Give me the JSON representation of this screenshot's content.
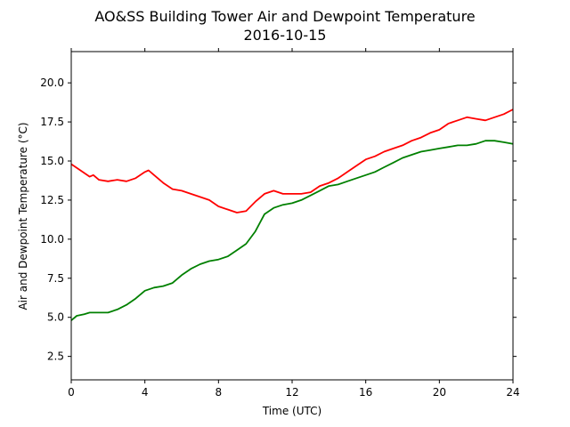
{
  "chart_data": {
    "type": "line",
    "title": "AO&SS Building Tower Air and Dewpoint Temperature",
    "subtitle": "2016-10-15",
    "xlabel": "Time (UTC)",
    "ylabel": "Air and Dewpoint Temperature (°C)",
    "xlim": [
      0,
      24
    ],
    "ylim": [
      1.0,
      22.0
    ],
    "x_ticks": [
      0,
      4,
      8,
      12,
      16,
      20,
      24
    ],
    "y_ticks": [
      2.5,
      5.0,
      7.5,
      10.0,
      12.5,
      15.0,
      17.5,
      20.0
    ],
    "grid": false,
    "series": [
      {
        "color": "#ff0000",
        "x": [
          0,
          0.5,
          1.0,
          1.2,
          1.5,
          2.0,
          2.5,
          3.0,
          3.5,
          4.0,
          4.2,
          4.5,
          5.0,
          5.5,
          6.0,
          6.5,
          7.0,
          7.5,
          8.0,
          8.5,
          9.0,
          9.5,
          10.0,
          10.5,
          11.0,
          11.5,
          12.0,
          12.5,
          13.0,
          13.5,
          14.0,
          14.5,
          15.0,
          15.5,
          16.0,
          16.5,
          17.0,
          17.5,
          18.0,
          18.5,
          19.0,
          19.5,
          20.0,
          20.5,
          21.0,
          21.5,
          22.0,
          22.5,
          23.0,
          23.5,
          24.0
        ],
        "values": [
          14.8,
          14.4,
          14.0,
          14.1,
          13.8,
          13.7,
          13.8,
          13.7,
          13.9,
          14.3,
          14.4,
          14.1,
          13.6,
          13.2,
          13.1,
          12.9,
          12.7,
          12.5,
          12.1,
          11.9,
          11.7,
          11.8,
          12.4,
          12.9,
          13.1,
          12.9,
          12.9,
          12.9,
          13.0,
          13.4,
          13.6,
          13.9,
          14.3,
          14.7,
          15.1,
          15.3,
          15.6,
          15.8,
          16.0,
          16.3,
          16.5,
          16.8,
          17.0,
          17.4,
          17.6,
          17.8,
          17.7,
          17.6,
          17.8,
          18.0,
          18.3
        ]
      },
      {
        "color": "#008000",
        "x": [
          0,
          0.3,
          0.7,
          1.0,
          1.5,
          2.0,
          2.5,
          3.0,
          3.5,
          4.0,
          4.5,
          5.0,
          5.5,
          6.0,
          6.5,
          7.0,
          7.5,
          8.0,
          8.5,
          9.0,
          9.5,
          10.0,
          10.5,
          11.0,
          11.5,
          12.0,
          12.5,
          13.0,
          13.5,
          14.0,
          14.5,
          15.0,
          15.5,
          16.0,
          16.5,
          17.0,
          17.5,
          18.0,
          18.5,
          19.0,
          19.5,
          20.0,
          20.5,
          21.0,
          21.5,
          22.0,
          22.5,
          23.0,
          23.5,
          24.0
        ],
        "values": [
          4.8,
          5.1,
          5.2,
          5.3,
          5.3,
          5.3,
          5.5,
          5.8,
          6.2,
          6.7,
          6.9,
          7.0,
          7.2,
          7.7,
          8.1,
          8.4,
          8.6,
          8.7,
          8.9,
          9.3,
          9.7,
          10.5,
          11.6,
          12.0,
          12.2,
          12.3,
          12.5,
          12.8,
          13.1,
          13.4,
          13.5,
          13.7,
          13.9,
          14.1,
          14.3,
          14.6,
          14.9,
          15.2,
          15.4,
          15.6,
          15.7,
          15.8,
          15.9,
          16.0,
          16.0,
          16.1,
          16.3,
          16.3,
          16.2,
          16.1
        ]
      }
    ]
  }
}
